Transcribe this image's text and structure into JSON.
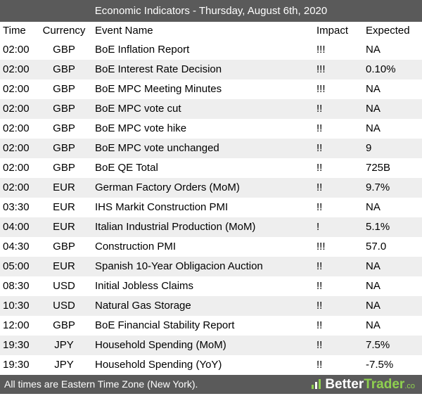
{
  "title": "Economic Indicators - Thursday, August 6th, 2020",
  "headers": {
    "time": "Time",
    "currency": "Currency",
    "event": "Event Name",
    "impact": "Impact",
    "expected": "Expected"
  },
  "rows": [
    {
      "time": "02:00",
      "currency": "GBP",
      "event": "BoE Inflation Report",
      "impact": "!!!",
      "expected": "NA"
    },
    {
      "time": "02:00",
      "currency": "GBP",
      "event": "BoE Interest Rate Decision",
      "impact": "!!!",
      "expected": "0.10%"
    },
    {
      "time": "02:00",
      "currency": "GBP",
      "event": "BoE MPC Meeting Minutes",
      "impact": "!!!",
      "expected": "NA"
    },
    {
      "time": "02:00",
      "currency": "GBP",
      "event": "BoE MPC vote cut",
      "impact": "!!",
      "expected": "NA"
    },
    {
      "time": "02:00",
      "currency": "GBP",
      "event": "BoE MPC vote hike",
      "impact": "!!",
      "expected": "NA"
    },
    {
      "time": "02:00",
      "currency": "GBP",
      "event": "BoE MPC vote unchanged",
      "impact": "!!",
      "expected": "9"
    },
    {
      "time": "02:00",
      "currency": "GBP",
      "event": "BoE QE Total",
      "impact": "!!",
      "expected": "725B"
    },
    {
      "time": "02:00",
      "currency": "EUR",
      "event": "German Factory Orders (MoM)",
      "impact": "!!",
      "expected": "9.7%"
    },
    {
      "time": "03:30",
      "currency": "EUR",
      "event": "IHS Markit Construction PMI",
      "impact": "!!",
      "expected": "NA"
    },
    {
      "time": "04:00",
      "currency": "EUR",
      "event": "Italian Industrial Production (MoM)",
      "impact": "!",
      "expected": "5.1%"
    },
    {
      "time": "04:30",
      "currency": "GBP",
      "event": "Construction PMI",
      "impact": "!!!",
      "expected": "57.0"
    },
    {
      "time": "05:00",
      "currency": "EUR",
      "event": "Spanish 10-Year Obligacion Auction",
      "impact": "!!",
      "expected": "NA"
    },
    {
      "time": "08:30",
      "currency": "USD",
      "event": "Initial Jobless Claims",
      "impact": "!!",
      "expected": "NA"
    },
    {
      "time": "10:30",
      "currency": "USD",
      "event": "Natural Gas Storage",
      "impact": "!!",
      "expected": "NA"
    },
    {
      "time": "12:00",
      "currency": "GBP",
      "event": "BoE Financial Stability Report",
      "impact": "!!",
      "expected": "NA"
    },
    {
      "time": "19:30",
      "currency": "JPY",
      "event": "Household Spending (MoM)",
      "impact": "!!",
      "expected": "7.5%"
    },
    {
      "time": "19:30",
      "currency": "JPY",
      "event": "Household Spending (YoY)",
      "impact": "!!",
      "expected": "-7.5%"
    }
  ],
  "footer": {
    "note": "All times are Eastern Time Zone (New York).",
    "brand_part1": "Better",
    "brand_part2": "Trader",
    "brand_suffix": ".co",
    "brand_icon": "bar-chart-icon"
  },
  "colors": {
    "bar": "#5a5a5a",
    "row_alt": "#eeeeee",
    "brand_green": "#8fd14f"
  }
}
